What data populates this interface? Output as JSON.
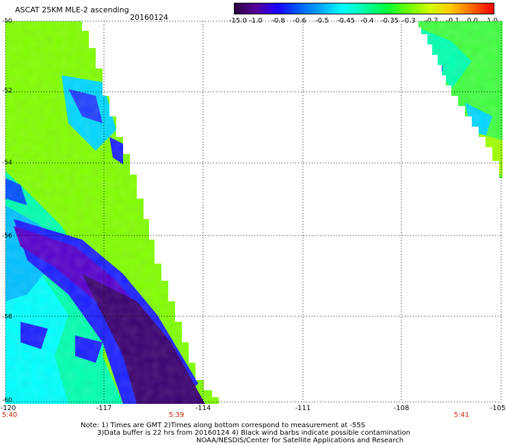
{
  "header": {
    "title": "ASCAT 25KM MLE-2 ascending",
    "date": "20160124"
  },
  "colorbar": {
    "labels": [
      "-15.0",
      "-1.0",
      "-0.8",
      "-0.6",
      "-0.5",
      "-0.45",
      "-0.4",
      "-0.35",
      "-0.3",
      "-0.2",
      "-0.1",
      "0.0",
      "1.0"
    ],
    "colors": [
      "#2a0040",
      "#550099",
      "#1a00ff",
      "#0060ff",
      "#00a8ff",
      "#00ffff",
      "#00ffaa",
      "#00ff40",
      "#66ff00",
      "#ccff00",
      "#ffcc00",
      "#ff6600",
      "#ff0000"
    ]
  },
  "axes": {
    "lat_labels": [
      "-50",
      "-52",
      "-54",
      "-56",
      "-58",
      "-60"
    ],
    "lon_labels": [
      "-120",
      "-117",
      "-114",
      "-111",
      "-108",
      "-105"
    ],
    "time_labels": [
      "5:40",
      "5:39",
      "5:41"
    ]
  },
  "notes": {
    "line1": "Note: 1) Times are GMT 2)Times along bottom correspond to measurement at -55S",
    "line2": "3)Data buffer is 22 hrs from 20160124 4) Black wind barbs indicate possible contamination",
    "line3": "NOAA/NESDIS/Center for Satellite Applications and Research"
  },
  "colors": {
    "grid": "#000000",
    "time_label": "#cc2200"
  }
}
